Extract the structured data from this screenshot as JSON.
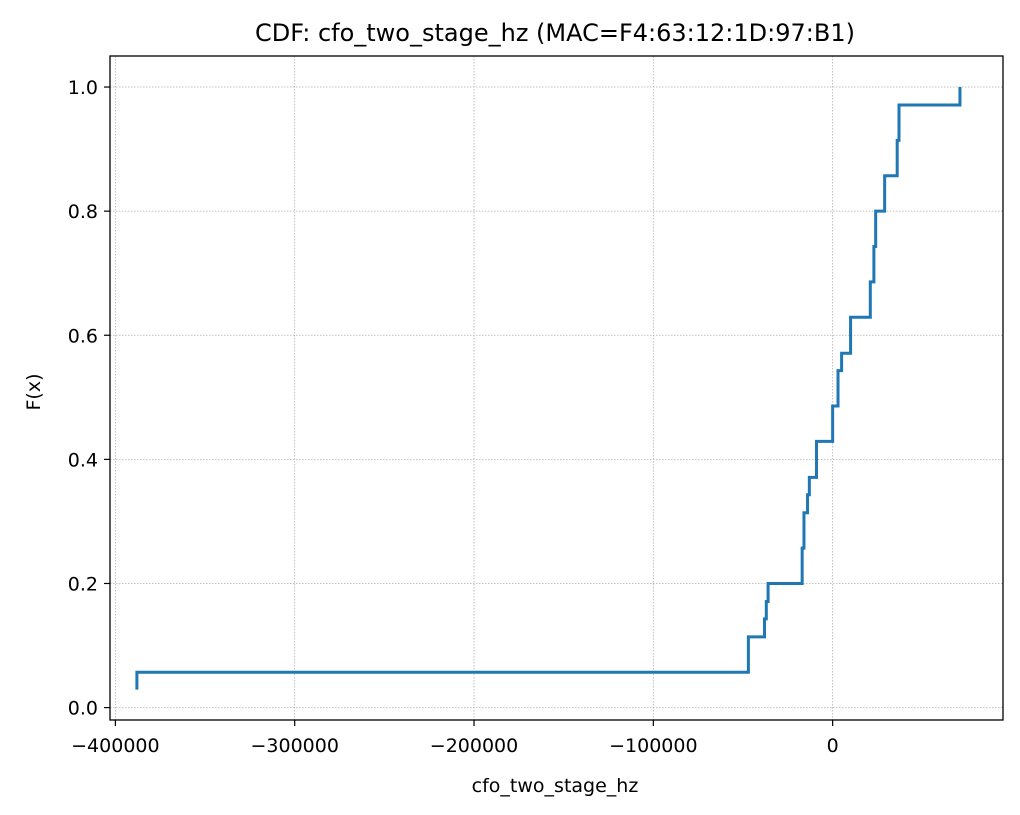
{
  "chart_data": {
    "type": "line",
    "step": "post",
    "title": "CDF: cfo_two_stage_hz (MAC=F4:63:12:1D:97:B1)",
    "xlabel": "cfo_two_stage_hz",
    "ylabel": "F(x)",
    "xlim": [
      -403000,
      95000
    ],
    "ylim": [
      -0.02,
      1.05
    ],
    "xticks": [
      -400000,
      -300000,
      -200000,
      -100000,
      0
    ],
    "xtick_labels": [
      "−400000",
      "−300000",
      "−200000",
      "−100000",
      "0"
    ],
    "yticks": [
      0.0,
      0.2,
      0.4,
      0.6,
      0.8,
      1.0
    ],
    "ytick_labels": [
      "0.0",
      "0.2",
      "0.4",
      "0.6",
      "0.8",
      "1.0"
    ],
    "grid": true,
    "line_color": "#1f77b4",
    "series": [
      {
        "x": [
          -388000,
          -388000,
          -47000,
          -38000,
          -37000,
          -36000,
          -17000,
          -16000,
          -14000,
          -13000,
          -9000,
          0,
          3000,
          5000,
          10000,
          21000,
          23000,
          24000,
          29000,
          36000,
          37000,
          71000
        ],
        "y": [
          0.029,
          0.057,
          0.114,
          0.143,
          0.171,
          0.2,
          0.257,
          0.314,
          0.343,
          0.371,
          0.429,
          0.486,
          0.543,
          0.571,
          0.629,
          0.686,
          0.743,
          0.8,
          0.857,
          0.914,
          0.971,
          1.0
        ]
      }
    ]
  }
}
